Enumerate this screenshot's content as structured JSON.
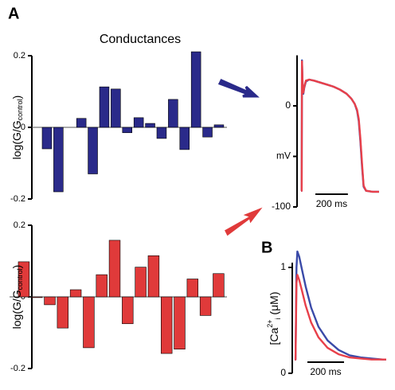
{
  "panel_labels": [
    "A",
    "B"
  ],
  "chart_data": [
    {
      "type": "bar",
      "title": "Conductances",
      "ylabel": "log(G/G",
      "ylabel_sub": "control",
      "ylabel_end": ")",
      "color": "#2a2a8a",
      "ylim": [
        -0.2,
        0.2
      ],
      "yticks": [
        0.2,
        0,
        -0.2
      ],
      "values": [
        -0.06,
        -0.18,
        0,
        0.025,
        -0.13,
        0.113,
        0.107,
        -0.015,
        0.027,
        0.011,
        -0.031,
        0.078,
        -0.062,
        0.211,
        -0.027,
        0.007
      ]
    },
    {
      "type": "bar",
      "ylabel": "log(G/G",
      "ylabel_sub": "control",
      "ylabel_end": ")",
      "color": "#e03a3a",
      "ylim": [
        -0.2,
        0.2
      ],
      "yticks": [
        0.2,
        0,
        -0.2
      ],
      "values": [
        0.098,
        -0.002,
        -0.022,
        -0.087,
        0.02,
        -0.142,
        0.062,
        0.158,
        -0.075,
        0.083,
        0.115,
        -0.158,
        -0.146,
        0.05,
        -0.052,
        0.065
      ]
    },
    {
      "type": "line",
      "xlim": [
        0,
        480
      ],
      "ylim": [
        -100,
        50
      ],
      "yticks": [
        0,
        {
          "value": -50,
          "label": "mV"
        },
        -100
      ],
      "scalebar": {
        "value": 200,
        "label": "200 ms"
      },
      "x": [
        0,
        4,
        6,
        10,
        14,
        20,
        30,
        50,
        80,
        120,
        160,
        200,
        240,
        280,
        310,
        330,
        345,
        355,
        365,
        375,
        385,
        400,
        440,
        480
      ],
      "series": [
        {
          "color": "#3a4aa8",
          "values": [
            -84,
            -84,
            45,
            20,
            12,
            18,
            24,
            26,
            25,
            23,
            21,
            19,
            16,
            12,
            7,
            2,
            -5,
            -15,
            -35,
            -60,
            -80,
            -84,
            -85,
            -85
          ]
        },
        {
          "color": "#e8404a",
          "values": [
            -84,
            -84,
            44,
            21,
            13,
            19,
            25,
            26,
            25,
            23,
            21,
            19,
            16,
            12,
            7,
            2,
            -4,
            -13,
            -32,
            -57,
            -79,
            -84,
            -85,
            -85
          ]
        }
      ]
    },
    {
      "type": "line",
      "ylabel": "[Ca",
      "ylabel_sup": "2+",
      "ylabel_sub": "i",
      "ylabel_end": " (μM)",
      "xlim": [
        0,
        500
      ],
      "ylim": [
        0,
        1.2
      ],
      "yticks": [
        0,
        1
      ],
      "scalebar": {
        "value": 200,
        "label": "200 ms"
      },
      "x": [
        0,
        5,
        10,
        15,
        25,
        40,
        60,
        90,
        130,
        180,
        240,
        300,
        360,
        420,
        480,
        500
      ],
      "series": [
        {
          "color": "#3a4aa8",
          "values": [
            0.13,
            0.13,
            1.0,
            1.15,
            1.1,
            0.98,
            0.82,
            0.62,
            0.44,
            0.31,
            0.22,
            0.17,
            0.15,
            0.14,
            0.13,
            0.13
          ]
        },
        {
          "color": "#e8404a",
          "values": [
            0.13,
            0.13,
            0.85,
            0.93,
            0.88,
            0.78,
            0.64,
            0.48,
            0.34,
            0.24,
            0.18,
            0.15,
            0.14,
            0.13,
            0.13,
            0.13
          ]
        }
      ]
    }
  ]
}
